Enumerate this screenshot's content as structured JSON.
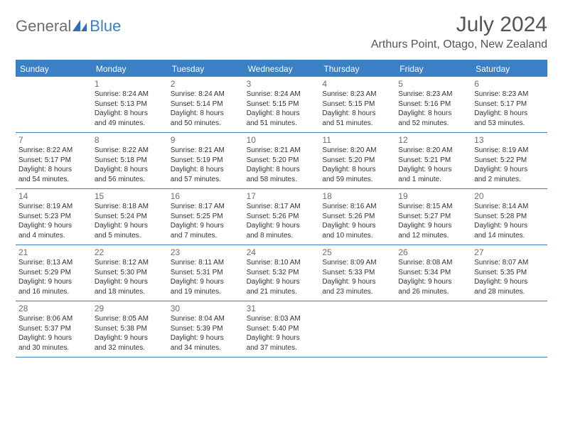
{
  "logo": {
    "text_general": "General",
    "text_blue": "Blue"
  },
  "title": "July 2024",
  "location": "Arthurs Point, Otago, New Zealand",
  "colors": {
    "accent": "#3b7fc4",
    "header_text": "#ffffff",
    "body_text": "#333333",
    "muted": "#6e6e6e",
    "background": "#ffffff"
  },
  "day_headers": [
    "Sunday",
    "Monday",
    "Tuesday",
    "Wednesday",
    "Thursday",
    "Friday",
    "Saturday"
  ],
  "weeks": [
    [
      {
        "empty": true
      },
      {
        "num": "1",
        "sunrise": "Sunrise: 8:24 AM",
        "sunset": "Sunset: 5:13 PM",
        "d1": "Daylight: 8 hours",
        "d2": "and 49 minutes."
      },
      {
        "num": "2",
        "sunrise": "Sunrise: 8:24 AM",
        "sunset": "Sunset: 5:14 PM",
        "d1": "Daylight: 8 hours",
        "d2": "and 50 minutes."
      },
      {
        "num": "3",
        "sunrise": "Sunrise: 8:24 AM",
        "sunset": "Sunset: 5:15 PM",
        "d1": "Daylight: 8 hours",
        "d2": "and 51 minutes."
      },
      {
        "num": "4",
        "sunrise": "Sunrise: 8:23 AM",
        "sunset": "Sunset: 5:15 PM",
        "d1": "Daylight: 8 hours",
        "d2": "and 51 minutes."
      },
      {
        "num": "5",
        "sunrise": "Sunrise: 8:23 AM",
        "sunset": "Sunset: 5:16 PM",
        "d1": "Daylight: 8 hours",
        "d2": "and 52 minutes."
      },
      {
        "num": "6",
        "sunrise": "Sunrise: 8:23 AM",
        "sunset": "Sunset: 5:17 PM",
        "d1": "Daylight: 8 hours",
        "d2": "and 53 minutes."
      }
    ],
    [
      {
        "num": "7",
        "sunrise": "Sunrise: 8:22 AM",
        "sunset": "Sunset: 5:17 PM",
        "d1": "Daylight: 8 hours",
        "d2": "and 54 minutes."
      },
      {
        "num": "8",
        "sunrise": "Sunrise: 8:22 AM",
        "sunset": "Sunset: 5:18 PM",
        "d1": "Daylight: 8 hours",
        "d2": "and 56 minutes."
      },
      {
        "num": "9",
        "sunrise": "Sunrise: 8:21 AM",
        "sunset": "Sunset: 5:19 PM",
        "d1": "Daylight: 8 hours",
        "d2": "and 57 minutes."
      },
      {
        "num": "10",
        "sunrise": "Sunrise: 8:21 AM",
        "sunset": "Sunset: 5:20 PM",
        "d1": "Daylight: 8 hours",
        "d2": "and 58 minutes."
      },
      {
        "num": "11",
        "sunrise": "Sunrise: 8:20 AM",
        "sunset": "Sunset: 5:20 PM",
        "d1": "Daylight: 8 hours",
        "d2": "and 59 minutes."
      },
      {
        "num": "12",
        "sunrise": "Sunrise: 8:20 AM",
        "sunset": "Sunset: 5:21 PM",
        "d1": "Daylight: 9 hours",
        "d2": "and 1 minute."
      },
      {
        "num": "13",
        "sunrise": "Sunrise: 8:19 AM",
        "sunset": "Sunset: 5:22 PM",
        "d1": "Daylight: 9 hours",
        "d2": "and 2 minutes."
      }
    ],
    [
      {
        "num": "14",
        "sunrise": "Sunrise: 8:19 AM",
        "sunset": "Sunset: 5:23 PM",
        "d1": "Daylight: 9 hours",
        "d2": "and 4 minutes."
      },
      {
        "num": "15",
        "sunrise": "Sunrise: 8:18 AM",
        "sunset": "Sunset: 5:24 PM",
        "d1": "Daylight: 9 hours",
        "d2": "and 5 minutes."
      },
      {
        "num": "16",
        "sunrise": "Sunrise: 8:17 AM",
        "sunset": "Sunset: 5:25 PM",
        "d1": "Daylight: 9 hours",
        "d2": "and 7 minutes."
      },
      {
        "num": "17",
        "sunrise": "Sunrise: 8:17 AM",
        "sunset": "Sunset: 5:26 PM",
        "d1": "Daylight: 9 hours",
        "d2": "and 8 minutes."
      },
      {
        "num": "18",
        "sunrise": "Sunrise: 8:16 AM",
        "sunset": "Sunset: 5:26 PM",
        "d1": "Daylight: 9 hours",
        "d2": "and 10 minutes."
      },
      {
        "num": "19",
        "sunrise": "Sunrise: 8:15 AM",
        "sunset": "Sunset: 5:27 PM",
        "d1": "Daylight: 9 hours",
        "d2": "and 12 minutes."
      },
      {
        "num": "20",
        "sunrise": "Sunrise: 8:14 AM",
        "sunset": "Sunset: 5:28 PM",
        "d1": "Daylight: 9 hours",
        "d2": "and 14 minutes."
      }
    ],
    [
      {
        "num": "21",
        "sunrise": "Sunrise: 8:13 AM",
        "sunset": "Sunset: 5:29 PM",
        "d1": "Daylight: 9 hours",
        "d2": "and 16 minutes."
      },
      {
        "num": "22",
        "sunrise": "Sunrise: 8:12 AM",
        "sunset": "Sunset: 5:30 PM",
        "d1": "Daylight: 9 hours",
        "d2": "and 18 minutes."
      },
      {
        "num": "23",
        "sunrise": "Sunrise: 8:11 AM",
        "sunset": "Sunset: 5:31 PM",
        "d1": "Daylight: 9 hours",
        "d2": "and 19 minutes."
      },
      {
        "num": "24",
        "sunrise": "Sunrise: 8:10 AM",
        "sunset": "Sunset: 5:32 PM",
        "d1": "Daylight: 9 hours",
        "d2": "and 21 minutes."
      },
      {
        "num": "25",
        "sunrise": "Sunrise: 8:09 AM",
        "sunset": "Sunset: 5:33 PM",
        "d1": "Daylight: 9 hours",
        "d2": "and 23 minutes."
      },
      {
        "num": "26",
        "sunrise": "Sunrise: 8:08 AM",
        "sunset": "Sunset: 5:34 PM",
        "d1": "Daylight: 9 hours",
        "d2": "and 26 minutes."
      },
      {
        "num": "27",
        "sunrise": "Sunrise: 8:07 AM",
        "sunset": "Sunset: 5:35 PM",
        "d1": "Daylight: 9 hours",
        "d2": "and 28 minutes."
      }
    ],
    [
      {
        "num": "28",
        "sunrise": "Sunrise: 8:06 AM",
        "sunset": "Sunset: 5:37 PM",
        "d1": "Daylight: 9 hours",
        "d2": "and 30 minutes."
      },
      {
        "num": "29",
        "sunrise": "Sunrise: 8:05 AM",
        "sunset": "Sunset: 5:38 PM",
        "d1": "Daylight: 9 hours",
        "d2": "and 32 minutes."
      },
      {
        "num": "30",
        "sunrise": "Sunrise: 8:04 AM",
        "sunset": "Sunset: 5:39 PM",
        "d1": "Daylight: 9 hours",
        "d2": "and 34 minutes."
      },
      {
        "num": "31",
        "sunrise": "Sunrise: 8:03 AM",
        "sunset": "Sunset: 5:40 PM",
        "d1": "Daylight: 9 hours",
        "d2": "and 37 minutes."
      },
      {
        "empty": true
      },
      {
        "empty": true
      },
      {
        "empty": true
      }
    ]
  ]
}
